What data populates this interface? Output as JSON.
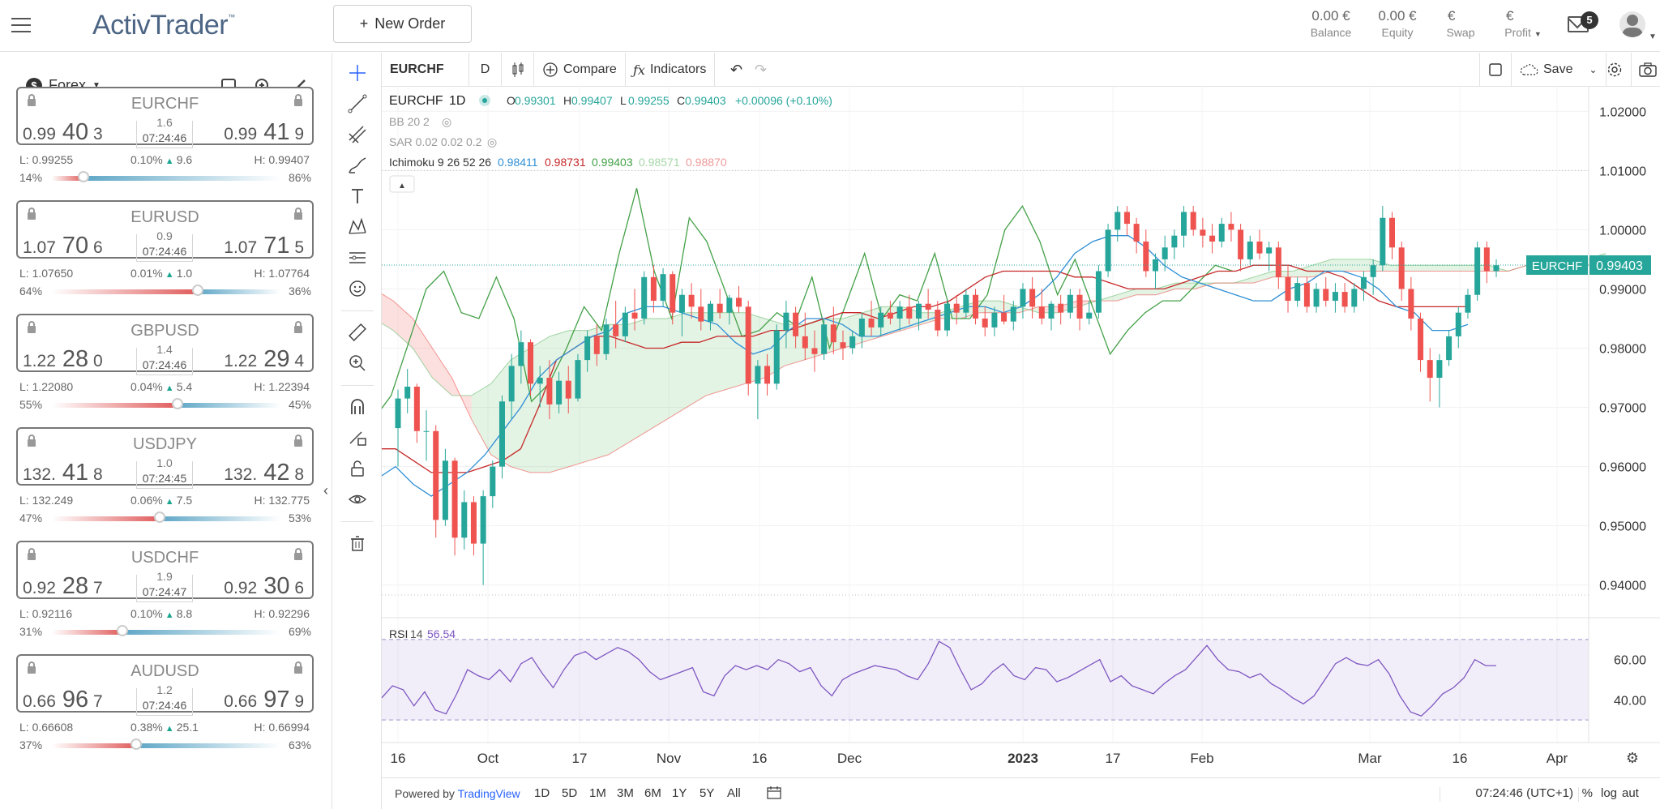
{
  "header": {
    "logo": "ActivTrader",
    "logo_tm": "™",
    "new_order_label": "New Order",
    "new_order_prefix": "+",
    "balance_value": "0.00 €",
    "balance_label": "Balance",
    "equity_value": "0.00 €",
    "equity_label": "Equity",
    "swap_value": "€",
    "swap_label": "Swap",
    "profit_value": "€",
    "profit_label": "Profit",
    "mail_count": "5"
  },
  "sidebar": {
    "market": "Forex",
    "currency_symbol": "$",
    "pairs": [
      {
        "symbol": "EURCHF",
        "bid_a": "0.99",
        "bid_b": "40",
        "bid_c": "3",
        "ask_a": "0.99",
        "ask_b": "41",
        "ask_c": "9",
        "spread": "1.6",
        "time": "07:24:46",
        "low": "L: 0.99255",
        "change": "0.10%",
        "change_val": "9.6",
        "high": "H: 0.99407",
        "sell_pct": "14%",
        "buy_pct": "86%",
        "sell_frac": 0.14
      },
      {
        "symbol": "EURUSD",
        "bid_a": "1.07",
        "bid_b": "70",
        "bid_c": "6",
        "ask_a": "1.07",
        "ask_b": "71",
        "ask_c": "5",
        "spread": "0.9",
        "time": "07:24:46",
        "low": "L: 1.07650",
        "change": "0.01%",
        "change_val": "1.0",
        "high": "H: 1.07764",
        "sell_pct": "64%",
        "buy_pct": "36%",
        "sell_frac": 0.64
      },
      {
        "symbol": "GBPUSD",
        "bid_a": "1.22",
        "bid_b": "28",
        "bid_c": "0",
        "ask_a": "1.22",
        "ask_b": "29",
        "ask_c": "4",
        "spread": "1.4",
        "time": "07:24:46",
        "low": "L: 1.22080",
        "change": "0.04%",
        "change_val": "5.4",
        "high": "H: 1.22394",
        "sell_pct": "55%",
        "buy_pct": "45%",
        "sell_frac": 0.55
      },
      {
        "symbol": "USDJPY",
        "bid_a": "132.",
        "bid_b": "41",
        "bid_c": "8",
        "ask_a": "132.",
        "ask_b": "42",
        "ask_c": "8",
        "spread": "1.0",
        "time": "07:24:45",
        "low": "L: 132.249",
        "change": "0.06%",
        "change_val": "7.5",
        "high": "H: 132.775",
        "sell_pct": "47%",
        "buy_pct": "53%",
        "sell_frac": 0.47
      },
      {
        "symbol": "USDCHF",
        "bid_a": "0.92",
        "bid_b": "28",
        "bid_c": "7",
        "ask_a": "0.92",
        "ask_b": "30",
        "ask_c": "6",
        "spread": "1.9",
        "time": "07:24:47",
        "low": "L: 0.92116",
        "change": "0.10%",
        "change_val": "8.8",
        "high": "H: 0.92296",
        "sell_pct": "31%",
        "buy_pct": "69%",
        "sell_frac": 0.31
      },
      {
        "symbol": "AUDUSD",
        "bid_a": "0.66",
        "bid_b": "96",
        "bid_c": "7",
        "ask_a": "0.66",
        "ask_b": "97",
        "ask_c": "9",
        "spread": "1.2",
        "time": "07:24:46",
        "low": "L: 0.66608",
        "change": "0.38%",
        "change_val": "25.1",
        "high": "H: 0.66994",
        "sell_pct": "37%",
        "buy_pct": "63%",
        "sell_frac": 0.37
      }
    ]
  },
  "toolbar": {
    "symbol": "EURCHF",
    "interval": "D",
    "compare_label": "Compare",
    "indicators_label": "Indicators",
    "save_label": "Save"
  },
  "legend": {
    "title_symbol": "EURCHF",
    "title_interval": "1D",
    "ohlc": [
      {
        "k": "O",
        "v": "0.99301"
      },
      {
        "k": "H",
        "v": "0.99407"
      },
      {
        "k": "L",
        "v": "0.99255"
      },
      {
        "k": "C",
        "v": "0.99403"
      }
    ],
    "change": "+0.00096 (+0.10%)",
    "bb": "BB 20 2",
    "sar": "SAR 0.02 0.02 0.2",
    "ichimoku_label": "Ichimoku 9 26 52 26",
    "ichimoku_values": [
      {
        "v": "0.98411",
        "color": "#2e8fd6"
      },
      {
        "v": "0.98731",
        "color": "#c62828"
      },
      {
        "v": "0.99403",
        "color": "#43a047"
      },
      {
        "v": "0.98571",
        "color": "#a5d6a7"
      },
      {
        "v": "0.98870",
        "color": "#ef9a9a"
      }
    ],
    "rsi_label": "RSI",
    "rsi_period": "14",
    "rsi_value": "56.54"
  },
  "chart_data": {
    "type": "candlestick",
    "symbol": "EURCHF",
    "interval": "1D",
    "ylim": [
      0.9375,
      1.0225
    ],
    "price_ticks": [
      "1.02000",
      "1.01000",
      "1.00000",
      "0.99000",
      "0.98000",
      "0.97000",
      "0.96000",
      "0.95000",
      "0.94000"
    ],
    "last_price": "0.99403",
    "last_label": "EURCHF",
    "x_ticks": [
      "16",
      "Oct",
      "17",
      "Nov",
      "16",
      "Dec",
      "2023",
      "17",
      "Feb",
      "Mar",
      "16",
      "Apr"
    ],
    "rsi_ticks": [
      "60.00",
      "40.00"
    ],
    "rsi_ylim": [
      20,
      78
    ],
    "rsi_band": [
      70,
      30
    ],
    "candles": [
      [
        0.9665,
        0.973,
        0.96,
        0.9715
      ],
      [
        0.9715,
        0.9765,
        0.969,
        0.9735
      ],
      [
        0.9735,
        0.974,
        0.964,
        0.966
      ],
      [
        0.966,
        0.9695,
        0.961,
        0.966
      ],
      [
        0.966,
        0.967,
        0.948,
        0.951
      ],
      [
        0.951,
        0.963,
        0.95,
        0.961
      ],
      [
        0.961,
        0.9615,
        0.945,
        0.948
      ],
      [
        0.948,
        0.956,
        0.946,
        0.954
      ],
      [
        0.954,
        0.955,
        0.945,
        0.947
      ],
      [
        0.947,
        0.956,
        0.94,
        0.955
      ],
      [
        0.955,
        0.961,
        0.953,
        0.96
      ],
      [
        0.96,
        0.972,
        0.958,
        0.971
      ],
      [
        0.971,
        0.979,
        0.968,
        0.977
      ],
      [
        0.977,
        0.983,
        0.974,
        0.981
      ],
      [
        0.981,
        0.9815,
        0.972,
        0.974
      ],
      [
        0.974,
        0.977,
        0.97,
        0.975
      ],
      [
        0.975,
        0.978,
        0.968,
        0.9705
      ],
      [
        0.9705,
        0.976,
        0.969,
        0.9745
      ],
      [
        0.9745,
        0.977,
        0.969,
        0.9715
      ],
      [
        0.9715,
        0.979,
        0.971,
        0.978
      ],
      [
        0.978,
        0.983,
        0.976,
        0.982
      ],
      [
        0.982,
        0.984,
        0.977,
        0.979
      ],
      [
        0.979,
        0.985,
        0.978,
        0.984
      ],
      [
        0.984,
        0.988,
        0.98,
        0.982
      ],
      [
        0.982,
        0.987,
        0.981,
        0.986
      ],
      [
        0.986,
        0.99,
        0.983,
        0.985
      ],
      [
        0.985,
        0.993,
        0.984,
        0.992
      ],
      [
        0.992,
        0.994,
        0.986,
        0.988
      ],
      [
        0.988,
        0.9935,
        0.987,
        0.9925
      ],
      [
        0.9925,
        0.993,
        0.984,
        0.986
      ],
      [
        0.986,
        0.99,
        0.982,
        0.989
      ],
      [
        0.989,
        0.991,
        0.985,
        0.987
      ],
      [
        0.987,
        0.99,
        0.983,
        0.9845
      ],
      [
        0.9845,
        0.988,
        0.983,
        0.9875
      ],
      [
        0.9875,
        0.99,
        0.985,
        0.986
      ],
      [
        0.986,
        0.989,
        0.984,
        0.9885
      ],
      [
        0.9885,
        0.9905,
        0.986,
        0.987
      ],
      [
        0.987,
        0.988,
        0.972,
        0.974
      ],
      [
        0.974,
        0.978,
        0.968,
        0.977
      ],
      [
        0.977,
        0.979,
        0.972,
        0.974
      ],
      [
        0.974,
        0.984,
        0.973,
        0.983
      ],
      [
        0.983,
        0.988,
        0.98,
        0.986
      ],
      [
        0.986,
        0.987,
        0.98,
        0.982
      ],
      [
        0.982,
        0.986,
        0.978,
        0.98
      ],
      [
        0.98,
        0.983,
        0.976,
        0.979
      ],
      [
        0.979,
        0.985,
        0.978,
        0.984
      ],
      [
        0.984,
        0.987,
        0.979,
        0.981
      ],
      [
        0.981,
        0.983,
        0.978,
        0.98
      ],
      [
        0.98,
        0.983,
        0.979,
        0.982
      ],
      [
        0.982,
        0.986,
        0.98,
        0.985
      ],
      [
        0.985,
        0.988,
        0.982,
        0.9835
      ],
      [
        0.9835,
        0.987,
        0.982,
        0.986
      ],
      [
        0.986,
        0.988,
        0.984,
        0.985
      ],
      [
        0.985,
        0.988,
        0.983,
        0.987
      ],
      [
        0.987,
        0.989,
        0.984,
        0.985
      ],
      [
        0.985,
        0.988,
        0.983,
        0.9875
      ],
      [
        0.9875,
        0.99,
        0.985,
        0.9865
      ],
      [
        0.9865,
        0.988,
        0.982,
        0.983
      ],
      [
        0.983,
        0.988,
        0.982,
        0.9875
      ],
      [
        0.9875,
        0.989,
        0.984,
        0.986
      ],
      [
        0.986,
        0.99,
        0.985,
        0.989
      ],
      [
        0.989,
        0.99,
        0.984,
        0.985
      ],
      [
        0.985,
        0.987,
        0.982,
        0.9835
      ],
      [
        0.9835,
        0.987,
        0.982,
        0.986
      ],
      [
        0.986,
        0.989,
        0.984,
        0.9845
      ],
      [
        0.9845,
        0.988,
        0.983,
        0.987
      ],
      [
        0.987,
        0.991,
        0.985,
        0.99
      ],
      [
        0.99,
        0.992,
        0.985,
        0.987
      ],
      [
        0.987,
        0.99,
        0.984,
        0.985
      ],
      [
        0.985,
        0.988,
        0.983,
        0.9875
      ],
      [
        0.9875,
        0.989,
        0.984,
        0.986
      ],
      [
        0.986,
        0.99,
        0.985,
        0.989
      ],
      [
        0.989,
        0.99,
        0.983,
        0.985
      ],
      [
        0.985,
        0.988,
        0.984,
        0.986
      ],
      [
        0.986,
        0.994,
        0.985,
        0.993
      ],
      [
        0.993,
        1.001,
        0.992,
        1.0
      ],
      [
        1.0,
        1.004,
        0.998,
        1.003
      ],
      [
        1.003,
        1.004,
        0.999,
        1.001
      ],
      [
        1.001,
        1.002,
        0.996,
        0.998
      ],
      [
        0.998,
        1.0,
        0.992,
        0.993
      ],
      [
        0.993,
        0.996,
        0.99,
        0.995
      ],
      [
        0.995,
        0.999,
        0.993,
        0.997
      ],
      [
        0.997,
        1.0,
        0.995,
        0.999
      ],
      [
        0.999,
        1.004,
        0.997,
        1.003
      ],
      [
        1.003,
        1.004,
        0.999,
        1.0
      ],
      [
        1.0,
        1.002,
        0.997,
        0.999
      ],
      [
        0.999,
        1.001,
        0.996,
        0.998
      ],
      [
        0.998,
        1.002,
        0.997,
        1.001
      ],
      [
        1.001,
        1.003,
        0.998,
        1.0
      ],
      [
        1.0,
        1.001,
        0.993,
        0.995
      ],
      [
        0.995,
        0.999,
        0.994,
        0.998
      ],
      [
        0.998,
        1.0,
        0.995,
        0.996
      ],
      [
        0.996,
        0.998,
        0.993,
        0.997
      ],
      [
        0.997,
        0.998,
        0.99,
        0.992
      ],
      [
        0.992,
        0.994,
        0.986,
        0.988
      ],
      [
        0.988,
        0.992,
        0.987,
        0.991
      ],
      [
        0.991,
        0.992,
        0.986,
        0.987
      ],
      [
        0.987,
        0.991,
        0.986,
        0.99
      ],
      [
        0.99,
        0.992,
        0.987,
        0.988
      ],
      [
        0.988,
        0.991,
        0.986,
        0.9895
      ],
      [
        0.9895,
        0.991,
        0.986,
        0.987
      ],
      [
        0.987,
        0.991,
        0.986,
        0.99
      ],
      [
        0.99,
        0.993,
        0.988,
        0.992
      ],
      [
        0.992,
        0.995,
        0.989,
        0.994
      ],
      [
        0.994,
        1.004,
        0.993,
        1.002
      ],
      [
        1.002,
        1.003,
        0.995,
        0.997
      ],
      [
        0.997,
        0.998,
        0.988,
        0.99
      ],
      [
        0.99,
        0.992,
        0.983,
        0.985
      ],
      [
        0.985,
        0.986,
        0.976,
        0.978
      ],
      [
        0.978,
        0.98,
        0.971,
        0.975
      ],
      [
        0.975,
        0.979,
        0.97,
        0.978
      ],
      [
        0.978,
        0.983,
        0.977,
        0.982
      ],
      [
        0.982,
        0.987,
        0.98,
        0.986
      ],
      [
        0.986,
        0.99,
        0.985,
        0.989
      ],
      [
        0.989,
        0.998,
        0.988,
        0.997
      ],
      [
        0.997,
        0.998,
        0.991,
        0.993
      ],
      [
        0.993,
        0.995,
        0.992,
        0.994
      ]
    ],
    "tenkan": [
      0.958,
      0.96,
      0.957,
      0.955,
      0.957,
      0.959,
      0.962,
      0.966,
      0.97,
      0.975,
      0.978,
      0.98,
      0.982,
      0.983,
      0.986,
      0.987,
      0.987,
      0.986,
      0.985,
      0.984,
      0.981,
      0.979,
      0.98,
      0.983,
      0.985,
      0.985,
      0.984,
      0.982,
      0.982,
      0.983,
      0.984,
      0.985,
      0.986,
      0.987,
      0.987,
      0.986,
      0.987,
      0.989,
      0.992,
      0.996,
      0.998,
      0.999,
      0.999,
      0.997,
      0.994,
      0.992,
      0.991,
      0.99,
      0.989,
      0.988,
      0.988,
      0.99,
      0.991,
      0.993,
      0.993,
      0.992,
      0.99,
      0.987,
      0.986,
      0.983,
      0.983,
      0.984
    ],
    "kijun": [
      0.963,
      0.963,
      0.961,
      0.959,
      0.959,
      0.959,
      0.96,
      0.961,
      0.963,
      0.97,
      0.978,
      0.98,
      0.982,
      0.982,
      0.981,
      0.98,
      0.98,
      0.981,
      0.981,
      0.982,
      0.982,
      0.982,
      0.983,
      0.983,
      0.984,
      0.985,
      0.986,
      0.986,
      0.985,
      0.986,
      0.987,
      0.987,
      0.988,
      0.99,
      0.992,
      0.993,
      0.993,
      0.993,
      0.993,
      0.992,
      0.992,
      0.991,
      0.99,
      0.99,
      0.99,
      0.991,
      0.992,
      0.993,
      0.993,
      0.994,
      0.994,
      0.994,
      0.993,
      0.993,
      0.992,
      0.99,
      0.988,
      0.987,
      0.987,
      0.987,
      0.987,
      0.987
    ],
    "chikou": [
      0.968,
      0.972,
      0.981,
      0.99,
      0.993,
      0.986,
      0.985,
      0.992,
      0.985,
      0.971,
      0.974,
      0.98,
      0.987,
      0.983,
      0.996,
      1.007,
      0.993,
      0.985,
      1.002,
      0.998,
      0.99,
      0.982,
      0.983,
      0.986,
      0.984,
      0.992,
      0.98,
      0.988,
      0.996,
      0.985,
      0.989,
      0.988,
      0.996,
      0.985,
      0.985,
      0.989,
      1.0,
      1.004,
      0.998,
      0.989,
      0.995,
      0.987,
      0.979,
      0.983,
      0.986,
      0.988,
      0.988,
      0.991,
      0.994,
      0.993
    ],
    "cloud_a": [
      0.985,
      0.983,
      0.98,
      0.975,
      0.972,
      0.972,
      0.974,
      0.978,
      0.98,
      0.982,
      0.983,
      0.983,
      0.984,
      0.984,
      0.985,
      0.985,
      0.986,
      0.986,
      0.986,
      0.986,
      0.985,
      0.984,
      0.984,
      0.985,
      0.985,
      0.986,
      0.987,
      0.987,
      0.986,
      0.986,
      0.987,
      0.988,
      0.988,
      0.987,
      0.986,
      0.986,
      0.987,
      0.988,
      0.989,
      0.99,
      0.99,
      0.991,
      0.991,
      0.991,
      0.991,
      0.992,
      0.993,
      0.993,
      0.994,
      0.995,
      0.995,
      0.995,
      0.994,
      0.994,
      0.994,
      0.994,
      0.994,
      0.994,
      0.993,
      0.994,
      0.994,
      0.994,
      0.995,
      0.996
    ],
    "cloud_b": [
      0.99,
      0.988,
      0.985,
      0.98,
      0.975,
      0.968,
      0.962,
      0.96,
      0.959,
      0.959,
      0.96,
      0.961,
      0.962,
      0.964,
      0.966,
      0.968,
      0.97,
      0.972,
      0.973,
      0.974,
      0.975,
      0.977,
      0.978,
      0.979,
      0.98,
      0.981,
      0.982,
      0.983,
      0.984,
      0.985,
      0.985,
      0.986,
      0.986,
      0.986,
      0.987,
      0.987,
      0.988,
      0.988,
      0.988,
      0.989,
      0.989,
      0.99,
      0.99,
      0.991,
      0.991,
      0.991,
      0.992,
      0.992,
      0.992,
      0.993,
      0.993,
      0.993,
      0.993,
      0.993,
      0.993,
      0.993,
      0.993,
      0.993,
      0.993,
      0.994,
      0.994,
      0.994,
      0.994,
      0.994
    ],
    "rsi": [
      41,
      47,
      45,
      37,
      44,
      35,
      33,
      43,
      55,
      52,
      50,
      55,
      49,
      58,
      61,
      53,
      46,
      55,
      62,
      64,
      60,
      63,
      66,
      64,
      60,
      54,
      50,
      52,
      54,
      56,
      44,
      42,
      52,
      57,
      55,
      57,
      55,
      60,
      58,
      54,
      56,
      47,
      42,
      50,
      53,
      55,
      57,
      56,
      55,
      52,
      50,
      58,
      69,
      66,
      55,
      45,
      48,
      54,
      58,
      52,
      50,
      56,
      55,
      49,
      51,
      54,
      57,
      60,
      49,
      52,
      47,
      45,
      43,
      48,
      52,
      55,
      61,
      67,
      60,
      55,
      54,
      51,
      53,
      48,
      45,
      41,
      38,
      42,
      50,
      58,
      61,
      58,
      57,
      60,
      53,
      42,
      34,
      32,
      37,
      43,
      46,
      51,
      60,
      57,
      57
    ]
  },
  "footer": {
    "powered_by": "Powered by",
    "brand": "TradingView",
    "ranges": [
      "1D",
      "5D",
      "1M",
      "3M",
      "6M",
      "1Y",
      "5Y",
      "All"
    ],
    "clock": "07:24:46 (UTC+1)",
    "pct": "%",
    "log": "log",
    "auto": "aut"
  },
  "colors": {
    "up": "#26a69a",
    "down": "#ef5350",
    "rsi": "#7e57c2",
    "tenkan": "#2e8fd6",
    "kijun": "#c62828",
    "chikou": "#43a047"
  }
}
